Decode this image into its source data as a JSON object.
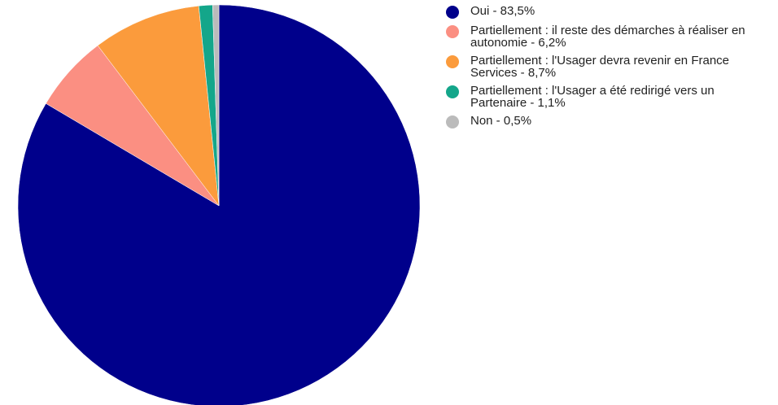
{
  "chart_data": {
    "type": "pie",
    "slices": [
      {
        "label": "Oui - 83,5%",
        "value": 83.5,
        "color": "#00008b"
      },
      {
        "label": "Partiellement : il reste des démarches à réaliser en autonomie - 6,2%",
        "value": 6.2,
        "color": "#fb8f82"
      },
      {
        "label": "Partiellement : l'Usager devra revenir en France Services - 8,7%",
        "value": 8.7,
        "color": "#fb9b3c"
      },
      {
        "label": "Partiellement : l'Usager a été redirigé vers un Partenaire - 1,1%",
        "value": 1.1,
        "color": "#14a68a"
      },
      {
        "label": "Non - 0,5%",
        "value": 0.5,
        "color": "#bbbbbb"
      }
    ],
    "start_angle": "top",
    "direction": "clockwise",
    "legend_position": "right"
  }
}
